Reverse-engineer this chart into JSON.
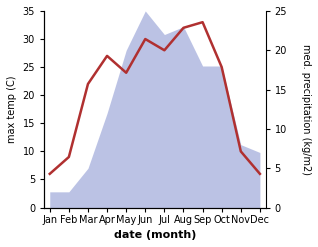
{
  "months": [
    "Jan",
    "Feb",
    "Mar",
    "Apr",
    "May",
    "Jun",
    "Jul",
    "Aug",
    "Sep",
    "Oct",
    "Nov",
    "Dec"
  ],
  "month_positions": [
    0,
    1,
    2,
    3,
    4,
    5,
    6,
    7,
    8,
    9,
    10,
    11
  ],
  "temp_values": [
    6,
    9,
    22,
    27,
    24,
    30,
    28,
    32,
    33,
    25,
    10,
    6
  ],
  "precip_values": [
    2,
    2,
    5,
    12,
    20,
    25,
    22,
    23,
    18,
    18,
    8,
    7
  ],
  "temp_color": "#b03030",
  "precip_fill_color": "#b0b8e0",
  "temp_ylim": [
    0,
    35
  ],
  "precip_ylim": [
    0,
    25
  ],
  "temp_yticks": [
    0,
    5,
    10,
    15,
    20,
    25,
    30,
    35
  ],
  "precip_yticks": [
    0,
    5,
    10,
    15,
    20,
    25
  ],
  "ylabel_left": "max temp (C)",
  "ylabel_right": "med. precipitation (kg/m2)",
  "xlabel": "date (month)",
  "temp_linewidth": 1.8,
  "label_fontsize": 7,
  "tick_fontsize": 7,
  "xlabel_fontsize": 8
}
